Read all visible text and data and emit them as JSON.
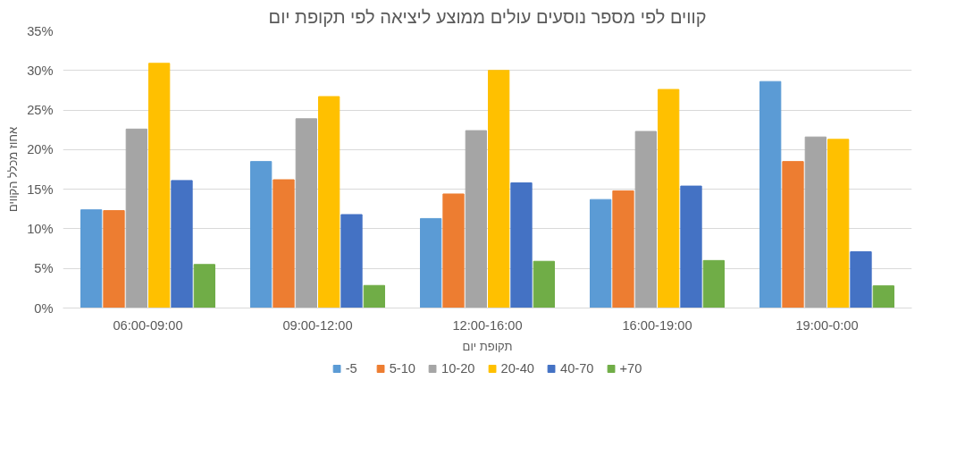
{
  "chart_data": {
    "type": "bar",
    "title": "קווים לפי מספר נוסעים עולים ממוצע ליציאה לפי תקופת יום",
    "xlabel": "תקופת יום",
    "ylabel": "אחוז מכלל הקווים",
    "categories": [
      "06:00-09:00",
      "09:00-12:00",
      "12:00-16:00",
      "16:00-19:00",
      "19:00-0:00"
    ],
    "series": [
      {
        "name": "-5",
        "color": "#5b9bd5",
        "values": [
          12.4,
          18.5,
          11.3,
          13.7,
          28.6
        ]
      },
      {
        "name": "5-10",
        "color": "#ed7d31",
        "values": [
          12.3,
          16.2,
          14.4,
          14.8,
          18.5
        ]
      },
      {
        "name": "10-20",
        "color": "#a5a5a5",
        "values": [
          22.6,
          23.9,
          22.4,
          22.3,
          21.6
        ]
      },
      {
        "name": "20-40",
        "color": "#ffc000",
        "values": [
          30.9,
          26.7,
          30.0,
          27.6,
          21.3
        ]
      },
      {
        "name": "40-70",
        "color": "#4472c4",
        "values": [
          16.1,
          11.8,
          15.8,
          15.4,
          7.1
        ]
      },
      {
        "name": "+70",
        "color": "#70ad47",
        "values": [
          5.5,
          2.85,
          5.9,
          6.0,
          2.8
        ]
      }
    ],
    "ylim": [
      0,
      35
    ],
    "yticks": [
      {
        "value": 0,
        "label": "0%"
      },
      {
        "value": 5,
        "label": "5%"
      },
      {
        "value": 10,
        "label": "10%"
      },
      {
        "value": 15,
        "label": "15%"
      },
      {
        "value": 20,
        "label": "20%"
      },
      {
        "value": 25,
        "label": "25%"
      },
      {
        "value": 30,
        "label": "30%"
      },
      {
        "value": 35,
        "label": "35%"
      }
    ],
    "grid": "y",
    "legend": "bottom"
  }
}
